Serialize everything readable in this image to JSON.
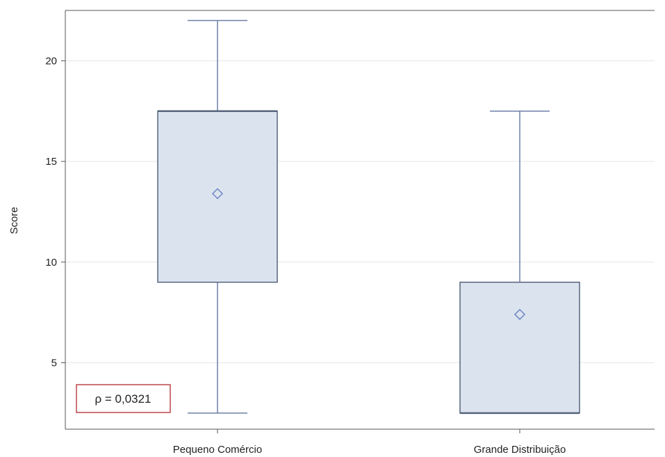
{
  "chart_data": {
    "type": "boxplot",
    "ylabel": "Score",
    "xlabel": "",
    "ylim": [
      1.7,
      22.5
    ],
    "yticks": [
      5,
      10,
      15,
      20
    ],
    "grid": true,
    "categories": [
      "Pequeno Comércio",
      "Grande Distribuição"
    ],
    "boxes": [
      {
        "category": "Pequeno Comércio",
        "min": 2.5,
        "q1": 9.0,
        "median": 17.5,
        "q3": 17.5,
        "max": 22.0,
        "mean": 13.4
      },
      {
        "category": "Grande Distribuição",
        "min": 2.5,
        "q1": 2.5,
        "median": 2.5,
        "q3": 9.0,
        "max": 17.5,
        "mean": 7.4
      }
    ],
    "annotation": "ρ = 0,0321",
    "colors": {
      "box_fill": "#dbe3ef",
      "box_stroke": "#56647c",
      "whisker": "#6b7fa8",
      "mean_marker": "#6b87c0",
      "grid": "#e6e6e6",
      "frame": "#555555",
      "annotation_border": "#b02a30"
    }
  }
}
